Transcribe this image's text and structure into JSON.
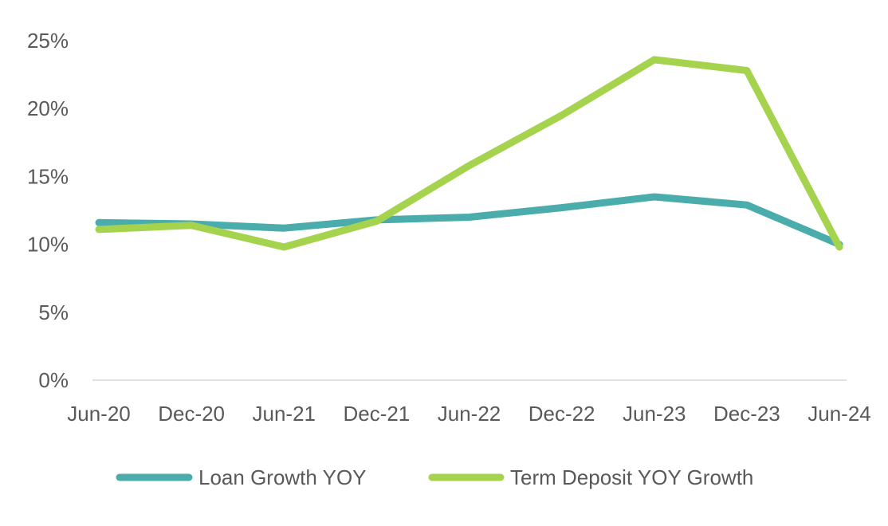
{
  "chart_data": {
    "type": "line",
    "title": "",
    "xlabel": "",
    "ylabel": "",
    "categories": [
      "Jun-20",
      "Dec-20",
      "Jun-21",
      "Dec-21",
      "Jun-22",
      "Dec-22",
      "Jun-23",
      "Dec-23",
      "Jun-24"
    ],
    "y_ticks": [
      "0%",
      "5%",
      "10%",
      "15%",
      "20%",
      "25%"
    ],
    "ylim": [
      0,
      25
    ],
    "grid": false,
    "legend_position": "bottom",
    "series": [
      {
        "name": "Loan Growth YOY",
        "color": "#4BACAC",
        "values": [
          11.6,
          11.5,
          11.2,
          11.8,
          12.0,
          12.7,
          13.5,
          12.9,
          10.0
        ]
      },
      {
        "name": "Term Deposit YOY Growth",
        "color": "#A6D34E",
        "values": [
          11.1,
          11.4,
          9.8,
          11.7,
          15.8,
          19.5,
          23.6,
          22.8,
          9.8
        ]
      }
    ]
  }
}
